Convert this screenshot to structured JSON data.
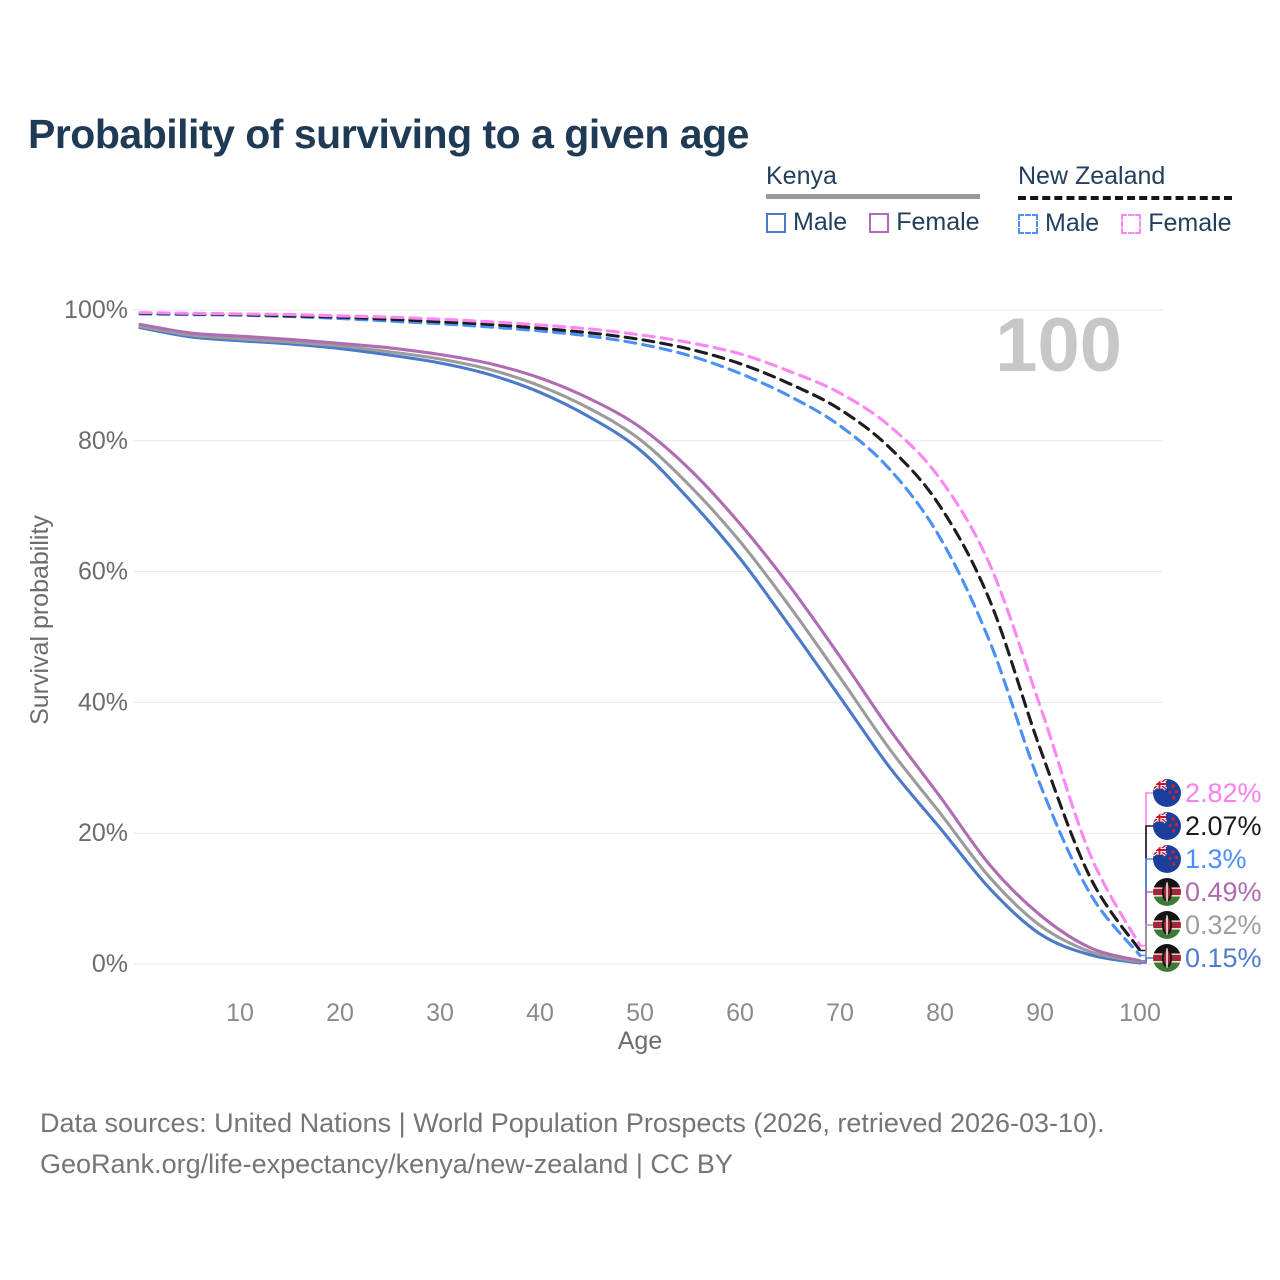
{
  "title": "Probability of surviving to a given age",
  "legend": {
    "groups": [
      {
        "country": "Kenya",
        "line_style": "solid",
        "underline_color": "#9a9a9a",
        "items": [
          {
            "label": "Male",
            "color": "#4a7ac8"
          },
          {
            "label": "Female",
            "color": "#b06cb3"
          }
        ]
      },
      {
        "country": "New Zealand",
        "line_style": "dashed",
        "underline_color": "#151515",
        "items": [
          {
            "label": "Male",
            "color": "#4a90f7"
          },
          {
            "label": "Female",
            "color": "#fb87f3"
          }
        ]
      }
    ]
  },
  "chart_data": {
    "type": "line",
    "title": "Probability of surviving to a given age",
    "xlabel": "Age",
    "ylabel": "Survival probability",
    "xlim": [
      0,
      100
    ],
    "ylim": [
      0,
      100
    ],
    "grid": "horizontal",
    "legend_position": "top-right",
    "watermark": "100",
    "x_ticks": [
      {
        "v": 10,
        "label": "10"
      },
      {
        "v": 20,
        "label": "20"
      },
      {
        "v": 30,
        "label": "30"
      },
      {
        "v": 40,
        "label": "40"
      },
      {
        "v": 50,
        "label": "50"
      },
      {
        "v": 60,
        "label": "60"
      },
      {
        "v": 70,
        "label": "70"
      },
      {
        "v": 80,
        "label": "80"
      },
      {
        "v": 90,
        "label": "90"
      },
      {
        "v": 100,
        "label": "100"
      }
    ],
    "y_ticks": [
      {
        "v": 0,
        "label": "0%"
      },
      {
        "v": 20,
        "label": "20%"
      },
      {
        "v": 40,
        "label": "40%"
      },
      {
        "v": 60,
        "label": "60%"
      },
      {
        "v": 80,
        "label": "80%"
      },
      {
        "v": 100,
        "label": "100%"
      }
    ],
    "x": [
      0,
      5,
      10,
      15,
      20,
      25,
      30,
      35,
      40,
      45,
      50,
      55,
      60,
      65,
      70,
      75,
      80,
      85,
      90,
      95,
      100
    ],
    "series": [
      {
        "name": "Kenya Male",
        "country": "Kenya",
        "sex": "Male",
        "style": "solid",
        "color": "#4a7ac8",
        "values": [
          97.3,
          95.9,
          95.3,
          94.8,
          94.1,
          93.1,
          91.9,
          90.1,
          87.4,
          83.6,
          78.6,
          70.9,
          62.0,
          51.6,
          40.8,
          30.0,
          20.8,
          11.5,
          4.6,
          1.4,
          0.15
        ]
      },
      {
        "name": "Kenya",
        "country": "Kenya",
        "sex": "Both",
        "style": "solid",
        "color": "#9b9b9b",
        "values": [
          97.5,
          96.2,
          95.6,
          95.1,
          94.5,
          93.6,
          92.5,
          90.9,
          88.4,
          84.9,
          80.2,
          73.1,
          64.6,
          54.6,
          43.8,
          32.8,
          23.1,
          13.2,
          5.9,
          1.9,
          0.32
        ]
      },
      {
        "name": "Kenya Female",
        "country": "Kenya",
        "sex": "Female",
        "style": "solid",
        "color": "#b06cb3",
        "values": [
          97.8,
          96.5,
          96.0,
          95.5,
          94.9,
          94.2,
          93.2,
          91.8,
          89.6,
          86.4,
          82.1,
          75.6,
          67.3,
          57.7,
          47.0,
          35.8,
          25.6,
          15.1,
          7.5,
          2.5,
          0.49
        ]
      },
      {
        "name": "New Zealand Male",
        "country": "New Zealand",
        "sex": "Male",
        "style": "dashed",
        "color": "#4a90f7",
        "values": [
          99.4,
          99.3,
          99.2,
          99.0,
          98.7,
          98.3,
          97.9,
          97.4,
          96.8,
          96.0,
          94.8,
          93.0,
          90.3,
          86.8,
          82.3,
          75.6,
          65.2,
          49.2,
          27.5,
          10.8,
          1.3
        ]
      },
      {
        "name": "New Zealand",
        "country": "New Zealand",
        "sex": "Both",
        "style": "dashed",
        "color": "#1c1c1c",
        "values": [
          99.5,
          99.4,
          99.3,
          99.1,
          98.9,
          98.6,
          98.2,
          97.8,
          97.2,
          96.5,
          95.5,
          94.0,
          91.8,
          88.7,
          84.8,
          78.9,
          70.0,
          55.5,
          33.0,
          13.3,
          2.07
        ]
      },
      {
        "name": "New Zealand Female",
        "country": "New Zealand",
        "sex": "Female",
        "style": "dashed",
        "color": "#fb87f3",
        "values": [
          99.6,
          99.5,
          99.4,
          99.3,
          99.1,
          98.9,
          98.6,
          98.2,
          97.7,
          97.1,
          96.2,
          95.0,
          93.3,
          90.6,
          87.3,
          82.2,
          74.2,
          61.0,
          39.5,
          16.8,
          2.82
        ]
      }
    ],
    "end_labels": [
      {
        "flag": "nz",
        "text": "2.82%",
        "color": "#fb7ff0",
        "series": "New Zealand Female"
      },
      {
        "flag": "nz",
        "text": "2.07%",
        "color": "#1a1a1a",
        "series": "New Zealand"
      },
      {
        "flag": "nz",
        "text": "1.3%",
        "color": "#4a90f7",
        "series": "New Zealand Male"
      },
      {
        "flag": "kenya",
        "text": "0.49%",
        "color": "#b268af",
        "series": "Kenya Female"
      },
      {
        "flag": "kenya",
        "text": "0.32%",
        "color": "#9e9e9e",
        "series": "Kenya"
      },
      {
        "flag": "kenya",
        "text": "0.15%",
        "color": "#4f7dd0",
        "series": "Kenya Male"
      }
    ]
  },
  "footer": {
    "line1": "Data sources: United Nations | World Population Prospects (2026, retrieved 2026-03-10).",
    "line2": "GeoRank.org/life-expectancy/kenya/new-zealand | CC BY"
  }
}
